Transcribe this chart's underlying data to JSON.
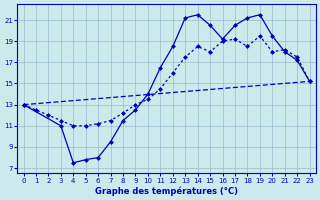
{
  "xlabel": "Graphe des températures (°C)",
  "x_ticks": [
    0,
    1,
    2,
    3,
    4,
    5,
    6,
    7,
    8,
    9,
    10,
    11,
    12,
    13,
    14,
    15,
    16,
    17,
    18,
    19,
    20,
    21,
    22,
    23
  ],
  "ylim": [
    6.5,
    22.5
  ],
  "xlim": [
    -0.5,
    23.5
  ],
  "yticks": [
    7,
    9,
    11,
    13,
    15,
    17,
    19,
    21
  ],
  "background_color": "#cce9ec",
  "line_color": "#0000bb",
  "grid_color": "#99bbcc",
  "line1_x": [
    0,
    1,
    2,
    3,
    4,
    5,
    6,
    7,
    8,
    9,
    10,
    11,
    12,
    13,
    14,
    15,
    16,
    17,
    18,
    19,
    20,
    21,
    22,
    23
  ],
  "line1_y": [
    13.0,
    12.5,
    12.0,
    11.5,
    11.0,
    11.0,
    11.2,
    11.5,
    12.2,
    13.0,
    13.5,
    14.5,
    16.0,
    17.5,
    18.5,
    18.0,
    19.0,
    19.2,
    18.5,
    19.5,
    18.0,
    18.2,
    17.5,
    15.2
  ],
  "line2_x": [
    0,
    3,
    4,
    5,
    6,
    7,
    8,
    9,
    10,
    11,
    12,
    13,
    14,
    15,
    16,
    17,
    18,
    19,
    20,
    21,
    22,
    23
  ],
  "line2_y": [
    13.0,
    11.0,
    7.5,
    7.8,
    8.0,
    9.5,
    11.5,
    12.5,
    14.0,
    16.5,
    18.5,
    21.2,
    21.5,
    20.5,
    19.2,
    20.5,
    21.2,
    21.5,
    19.5,
    18.0,
    17.2,
    15.2
  ],
  "line3_x": [
    0,
    23
  ],
  "line3_y": [
    13.0,
    15.2
  ],
  "marker_size": 2.5
}
